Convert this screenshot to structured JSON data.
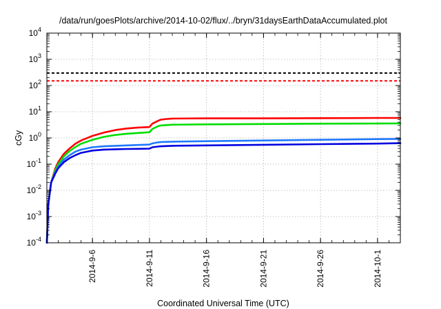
{
  "chart_data": {
    "type": "line",
    "title": "/data/run/goesPlots/archive/2014-10-02/flux/../bryn/31daysEarthDataAccumulated.plot",
    "xlabel": "Coordinated Universal Time (UTC)",
    "ylabel": "cGy",
    "y_scale": "log",
    "ylim": [
      0.0001,
      10000
    ],
    "xlim": [
      "2014-09-02",
      "2014-10-03"
    ],
    "grid": true,
    "legend": "none",
    "x_ticks": [
      "2014-9-6",
      "2014-9-11",
      "2014-9-16",
      "2014-9-21",
      "2014-9-26",
      "2014-10-1"
    ],
    "y_ticks": [
      {
        "value": 0.0001,
        "base": "10",
        "exp": "-4"
      },
      {
        "value": 0.001,
        "base": "10",
        "exp": "-3"
      },
      {
        "value": 0.01,
        "base": "10",
        "exp": "-2"
      },
      {
        "value": 0.1,
        "base": "10",
        "exp": "-1"
      },
      {
        "value": 1,
        "base": "10",
        "exp": "0"
      },
      {
        "value": 10,
        "base": "10",
        "exp": "1"
      },
      {
        "value": 100,
        "base": "10",
        "exp": "2"
      },
      {
        "value": 1000,
        "base": "10",
        "exp": "3"
      },
      {
        "value": 10000,
        "base": "10",
        "exp": "4"
      }
    ],
    "thresholds": [
      {
        "value": 300,
        "color": "#000000"
      },
      {
        "value": 150,
        "color": "#ff0000"
      }
    ],
    "series": [
      {
        "color": "#ff0000",
        "points": [
          [
            "2014-09-02",
            0.0001
          ],
          [
            "2014-09-02T03:00",
            0.003
          ],
          [
            "2014-09-02T09:00",
            0.02
          ],
          [
            "2014-09-02T18:00",
            0.07
          ],
          [
            "2014-09-03",
            0.12
          ],
          [
            "2014-09-03T12:00",
            0.25
          ],
          [
            "2014-09-04",
            0.4
          ],
          [
            "2014-09-04T12:00",
            0.6
          ],
          [
            "2014-09-05",
            0.8
          ],
          [
            "2014-09-06",
            1.2
          ],
          [
            "2014-09-07",
            1.6
          ],
          [
            "2014-09-08",
            2.0
          ],
          [
            "2014-09-09",
            2.3
          ],
          [
            "2014-09-10",
            2.5
          ],
          [
            "2014-09-11",
            2.6
          ],
          [
            "2014-09-11T06:00",
            3.5
          ],
          [
            "2014-09-11T18:00",
            4.5
          ],
          [
            "2014-09-12",
            5.0
          ],
          [
            "2014-09-12T12:00",
            5.3
          ],
          [
            "2014-09-13",
            5.5
          ],
          [
            "2014-09-16",
            5.6
          ],
          [
            "2014-09-21",
            5.6
          ],
          [
            "2014-09-26",
            5.7
          ],
          [
            "2014-10-01",
            5.8
          ],
          [
            "2014-10-03",
            5.8
          ]
        ]
      },
      {
        "color": "#00dd00",
        "points": [
          [
            "2014-09-02",
            0.0001
          ],
          [
            "2014-09-02T03:00",
            0.003
          ],
          [
            "2014-09-02T09:00",
            0.02
          ],
          [
            "2014-09-02T18:00",
            0.06
          ],
          [
            "2014-09-03",
            0.1
          ],
          [
            "2014-09-03T12:00",
            0.2
          ],
          [
            "2014-09-04",
            0.32
          ],
          [
            "2014-09-04T12:00",
            0.45
          ],
          [
            "2014-09-05",
            0.6
          ],
          [
            "2014-09-06",
            0.85
          ],
          [
            "2014-09-07",
            1.1
          ],
          [
            "2014-09-08",
            1.3
          ],
          [
            "2014-09-09",
            1.45
          ],
          [
            "2014-09-10",
            1.55
          ],
          [
            "2014-09-11",
            1.65
          ],
          [
            "2014-09-11T06:00",
            2.2
          ],
          [
            "2014-09-11T18:00",
            2.8
          ],
          [
            "2014-09-12",
            3.0
          ],
          [
            "2014-09-12T12:00",
            3.1
          ],
          [
            "2014-09-13",
            3.2
          ],
          [
            "2014-09-16",
            3.3
          ],
          [
            "2014-09-21",
            3.4
          ],
          [
            "2014-09-26",
            3.5
          ],
          [
            "2014-10-01",
            3.55
          ],
          [
            "2014-10-03",
            3.6
          ]
        ]
      },
      {
        "color": "#1e78ff",
        "points": [
          [
            "2014-09-02",
            0.0001
          ],
          [
            "2014-09-02T03:00",
            0.003
          ],
          [
            "2014-09-02T09:00",
            0.02
          ],
          [
            "2014-09-02T18:00",
            0.05
          ],
          [
            "2014-09-03",
            0.08
          ],
          [
            "2014-09-03T12:00",
            0.15
          ],
          [
            "2014-09-04",
            0.22
          ],
          [
            "2014-09-04T12:00",
            0.3
          ],
          [
            "2014-09-05",
            0.36
          ],
          [
            "2014-09-06",
            0.44
          ],
          [
            "2014-09-07",
            0.48
          ],
          [
            "2014-09-08",
            0.5
          ],
          [
            "2014-09-09",
            0.52
          ],
          [
            "2014-09-10",
            0.54
          ],
          [
            "2014-09-11",
            0.56
          ],
          [
            "2014-09-11T06:00",
            0.62
          ],
          [
            "2014-09-11T18:00",
            0.68
          ],
          [
            "2014-09-12",
            0.7
          ],
          [
            "2014-09-13",
            0.72
          ],
          [
            "2014-09-16",
            0.75
          ],
          [
            "2014-09-21",
            0.8
          ],
          [
            "2014-09-26",
            0.85
          ],
          [
            "2014-10-01",
            0.9
          ],
          [
            "2014-10-03",
            0.92
          ]
        ]
      },
      {
        "color": "#0000e0",
        "points": [
          [
            "2014-09-02",
            0.0001
          ],
          [
            "2014-09-02T03:00",
            0.003
          ],
          [
            "2014-09-02T09:00",
            0.02
          ],
          [
            "2014-09-02T18:00",
            0.045
          ],
          [
            "2014-09-03",
            0.07
          ],
          [
            "2014-09-03T12:00",
            0.12
          ],
          [
            "2014-09-04",
            0.17
          ],
          [
            "2014-09-04T12:00",
            0.22
          ],
          [
            "2014-09-05",
            0.27
          ],
          [
            "2014-09-06",
            0.33
          ],
          [
            "2014-09-07",
            0.36
          ],
          [
            "2014-09-08",
            0.37
          ],
          [
            "2014-09-09",
            0.38
          ],
          [
            "2014-09-10",
            0.385
          ],
          [
            "2014-09-11",
            0.39
          ],
          [
            "2014-09-11T06:00",
            0.44
          ],
          [
            "2014-09-11T18:00",
            0.47
          ],
          [
            "2014-09-12",
            0.48
          ],
          [
            "2014-09-13",
            0.5
          ],
          [
            "2014-09-16",
            0.52
          ],
          [
            "2014-09-21",
            0.55
          ],
          [
            "2014-09-26",
            0.58
          ],
          [
            "2014-10-01",
            0.61
          ],
          [
            "2014-10-03",
            0.63
          ]
        ]
      }
    ]
  }
}
